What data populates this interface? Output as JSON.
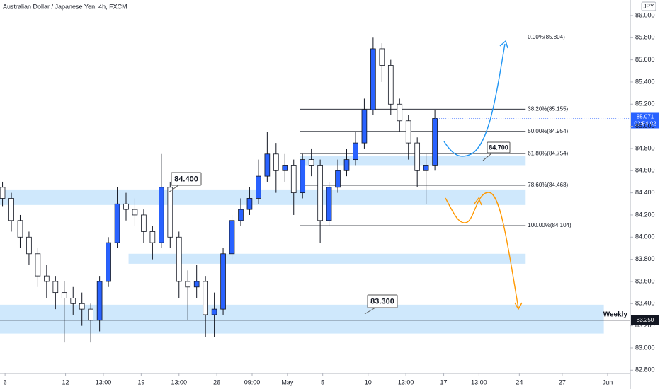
{
  "chart_data": {
    "type": "candlestick",
    "title": "Australian Dollar / Japanese Yen, 4h, FXCM",
    "currency": "JPY",
    "countdown": "02:54:02",
    "xlim": [
      0,
      250
    ],
    "ylim": [
      82.77,
      86.14
    ],
    "xticks": [
      {
        "value": 2,
        "label": "6"
      },
      {
        "value": 26,
        "label": "12"
      },
      {
        "value": 41,
        "label": "13:00"
      },
      {
        "value": 56,
        "label": "19"
      },
      {
        "value": 71,
        "label": "13:00"
      },
      {
        "value": 86,
        "label": "26"
      },
      {
        "value": 100,
        "label": "09:00"
      },
      {
        "value": 114,
        "label": "May"
      },
      {
        "value": 128,
        "label": "5"
      },
      {
        "value": 146,
        "label": "10"
      },
      {
        "value": 161,
        "label": "13:00"
      },
      {
        "value": 176,
        "label": "17"
      },
      {
        "value": 190,
        "label": "13:00"
      },
      {
        "value": 206,
        "label": "24"
      },
      {
        "value": 223,
        "label": "27"
      },
      {
        "value": 241,
        "label": "Jun"
      }
    ],
    "yticks": [
      {
        "value": 82.8,
        "label": "82.800"
      },
      {
        "value": 83.0,
        "label": "83.000"
      },
      {
        "value": 83.2,
        "label": "83.200"
      },
      {
        "value": 83.4,
        "label": "83.400"
      },
      {
        "value": 83.6,
        "label": "83.600"
      },
      {
        "value": 83.8,
        "label": "83.800"
      },
      {
        "value": 84.0,
        "label": "84.000"
      },
      {
        "value": 84.2,
        "label": "84.200"
      },
      {
        "value": 84.4,
        "label": "84.400"
      },
      {
        "value": 84.6,
        "label": "84.600"
      },
      {
        "value": 84.8,
        "label": "84.800"
      },
      {
        "value": 85.0,
        "label": "85.000"
      },
      {
        "value": 85.2,
        "label": "85.200"
      },
      {
        "value": 85.4,
        "label": "85.400"
      },
      {
        "value": 85.6,
        "label": "85.600"
      },
      {
        "value": 85.8,
        "label": "85.800"
      },
      {
        "value": 86.0,
        "label": "86.000"
      }
    ],
    "up_color": "#2962ff",
    "down_color": "#ffffff",
    "x": [
      1,
      4.5,
      8,
      11.5,
      15,
      18.5,
      22,
      25.5,
      29,
      32.5,
      36,
      39.5,
      43,
      46.5,
      50,
      53.5,
      57,
      60.5,
      64,
      67.5,
      71,
      74.5,
      78,
      81.5,
      85,
      88.5,
      92,
      95.5,
      99,
      102.5,
      106,
      109.5,
      113,
      116.5,
      120,
      123.5,
      127,
      130.5,
      134,
      137.5,
      141,
      144.5,
      148,
      151.5,
      155,
      158.5,
      162,
      165.5,
      169,
      172.5
    ],
    "open": [
      84.45,
      84.35,
      84.15,
      84.0,
      83.85,
      83.65,
      83.6,
      83.5,
      83.45,
      83.4,
      83.35,
      83.25,
      83.6,
      83.95,
      84.3,
      84.25,
      84.2,
      84.05,
      83.95,
      84.45,
      84.0,
      83.6,
      83.55,
      83.6,
      83.3,
      83.35,
      83.85,
      84.15,
      84.25,
      84.35,
      84.55,
      84.75,
      84.6,
      84.65,
      84.4,
      84.7,
      84.65,
      84.15,
      84.45,
      84.6,
      84.7,
      84.85,
      85.15,
      85.7,
      85.55,
      85.2,
      85.05,
      84.85,
      84.6,
      84.65
    ],
    "high": [
      84.5,
      84.4,
      84.2,
      84.05,
      83.9,
      83.75,
      83.65,
      83.6,
      83.55,
      83.5,
      83.4,
      83.65,
      84.0,
      84.45,
      84.4,
      84.35,
      84.25,
      84.1,
      84.75,
      84.5,
      84.05,
      83.7,
      83.75,
      83.65,
      83.5,
      83.9,
      84.2,
      84.35,
      84.45,
      84.7,
      84.95,
      84.85,
      84.75,
      84.7,
      84.75,
      84.8,
      84.7,
      84.5,
      84.7,
      84.8,
      84.95,
      85.25,
      85.8,
      85.75,
      85.6,
      85.25,
      85.1,
      84.9,
      84.75,
      85.15
    ],
    "low": [
      84.28,
      84.05,
      83.9,
      83.75,
      83.55,
      83.45,
      83.35,
      83.05,
      83.3,
      83.2,
      83.05,
      83.15,
      83.55,
      83.9,
      84.15,
      84.1,
      83.95,
      83.8,
      83.9,
      83.9,
      83.45,
      83.25,
      83.45,
      83.1,
      83.1,
      83.3,
      83.8,
      84.1,
      84.2,
      84.3,
      84.5,
      84.4,
      84.5,
      84.2,
      84.35,
      84.55,
      83.95,
      84.1,
      84.4,
      84.55,
      84.65,
      84.8,
      85.1,
      85.4,
      85.1,
      84.95,
      84.7,
      84.45,
      84.3,
      84.6
    ],
    "close": [
      84.35,
      84.15,
      84.0,
      83.85,
      83.65,
      83.6,
      83.5,
      83.45,
      83.4,
      83.35,
      83.25,
      83.6,
      83.95,
      84.3,
      84.25,
      84.2,
      84.05,
      83.95,
      84.45,
      84.0,
      83.6,
      83.55,
      83.6,
      83.3,
      83.35,
      83.85,
      84.15,
      84.25,
      84.35,
      84.55,
      84.75,
      84.6,
      84.65,
      84.4,
      84.7,
      84.65,
      84.15,
      84.45,
      84.6,
      84.7,
      84.85,
      85.15,
      85.7,
      85.55,
      85.2,
      85.05,
      84.85,
      84.6,
      84.65,
      85.071
    ],
    "zones": [
      {
        "from": 84.29,
        "to": 84.43,
        "x": [
          0,
          208.5
        ]
      },
      {
        "from": 84.65,
        "to": 84.73,
        "x": [
          119,
          208.5
        ]
      },
      {
        "from": 83.76,
        "to": 83.85,
        "x": [
          51,
          208.5
        ]
      },
      {
        "from": 83.13,
        "to": 83.39,
        "x": [
          0,
          239.5
        ]
      }
    ],
    "fib": {
      "x": [
        119,
        208.5
      ],
      "levels": [
        {
          "value": 85.804,
          "label": "0.00%(85.804)"
        },
        {
          "value": 85.155,
          "label": "38.20%(85.155)"
        },
        {
          "value": 84.954,
          "label": "50.00%(84.954)"
        },
        {
          "value": 84.754,
          "label": "61.80%(84.754)"
        },
        {
          "value": 84.468,
          "label": "78.60%(84.468)"
        },
        {
          "value": 84.104,
          "label": "100.00%(84.104)"
        }
      ]
    },
    "weekly": {
      "name": "Weekly",
      "value": 83.25,
      "label": "83.250"
    },
    "annotations": [
      "84.400",
      "83.300",
      "84.700"
    ]
  }
}
